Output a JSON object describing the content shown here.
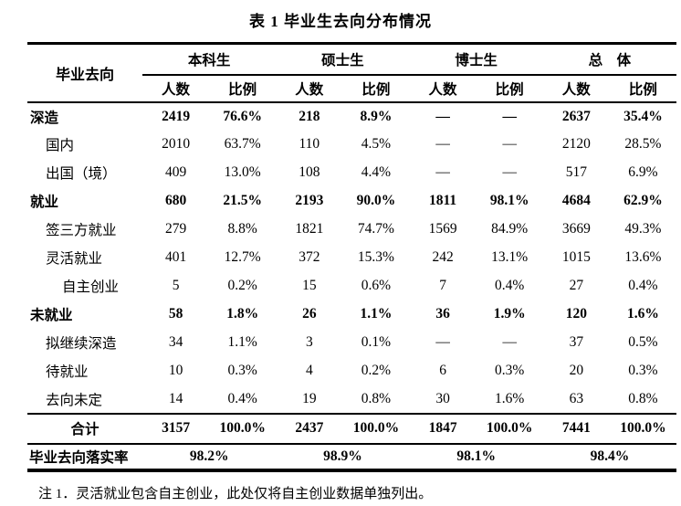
{
  "title": "表 1 毕业生去向分布情况",
  "table": {
    "corner_header": "毕业去向",
    "groups": [
      "本科生",
      "硕士生",
      "博士生",
      "总　体"
    ],
    "sub_headers": [
      "人数",
      "比例"
    ],
    "rows": [
      {
        "label": "深造",
        "bold": true,
        "indent": 0,
        "values": [
          "2419",
          "76.6%",
          "218",
          "8.9%",
          "—",
          "—",
          "2637",
          "35.4%"
        ]
      },
      {
        "label": "国内",
        "bold": false,
        "indent": 1,
        "values": [
          "2010",
          "63.7%",
          "110",
          "4.5%",
          "—",
          "—",
          "2120",
          "28.5%"
        ]
      },
      {
        "label": "出国（境）",
        "bold": false,
        "indent": 1,
        "values": [
          "409",
          "13.0%",
          "108",
          "4.4%",
          "—",
          "—",
          "517",
          "6.9%"
        ]
      },
      {
        "label": "就业",
        "bold": true,
        "indent": 0,
        "values": [
          "680",
          "21.5%",
          "2193",
          "90.0%",
          "1811",
          "98.1%",
          "4684",
          "62.9%"
        ]
      },
      {
        "label": "签三方就业",
        "bold": false,
        "indent": 1,
        "values": [
          "279",
          "8.8%",
          "1821",
          "74.7%",
          "1569",
          "84.9%",
          "3669",
          "49.3%"
        ]
      },
      {
        "label": "灵活就业",
        "bold": false,
        "indent": 1,
        "values": [
          "401",
          "12.7%",
          "372",
          "15.3%",
          "242",
          "13.1%",
          "1015",
          "13.6%"
        ]
      },
      {
        "label": "自主创业",
        "bold": false,
        "indent": 2,
        "values": [
          "5",
          "0.2%",
          "15",
          "0.6%",
          "7",
          "0.4%",
          "27",
          "0.4%"
        ]
      },
      {
        "label": "未就业",
        "bold": true,
        "indent": 0,
        "values": [
          "58",
          "1.8%",
          "26",
          "1.1%",
          "36",
          "1.9%",
          "120",
          "1.6%"
        ]
      },
      {
        "label": "拟继续深造",
        "bold": false,
        "indent": 1,
        "values": [
          "34",
          "1.1%",
          "3",
          "0.1%",
          "—",
          "—",
          "37",
          "0.5%"
        ]
      },
      {
        "label": "待就业",
        "bold": false,
        "indent": 1,
        "values": [
          "10",
          "0.3%",
          "4",
          "0.2%",
          "6",
          "0.3%",
          "20",
          "0.3%"
        ]
      },
      {
        "label": "去向未定",
        "bold": false,
        "indent": 1,
        "values": [
          "14",
          "0.4%",
          "19",
          "0.8%",
          "30",
          "1.6%",
          "63",
          "0.8%"
        ]
      }
    ],
    "total_row": {
      "label": "合计",
      "values": [
        "3157",
        "100.0%",
        "2437",
        "100.0%",
        "1847",
        "100.0%",
        "7441",
        "100.0%"
      ]
    },
    "rate_row": {
      "label": "毕业去向落实率",
      "values": [
        "98.2%",
        "98.9%",
        "98.1%",
        "98.4%"
      ]
    }
  },
  "note": "注 1．灵活就业包含自主创业，此处仅将自主创业数据单独列出。"
}
